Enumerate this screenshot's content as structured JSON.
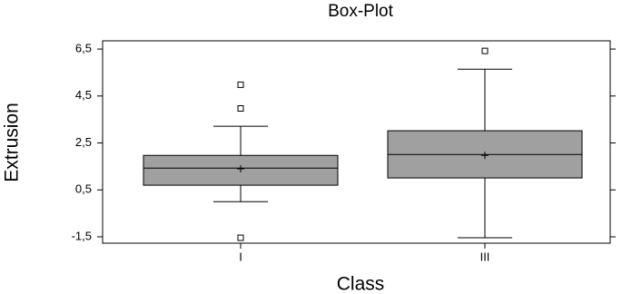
{
  "chart_data": {
    "type": "box",
    "title": "Box-Plot",
    "x_label": "Class",
    "y_label": "Extrusion",
    "categories": [
      "I",
      "III"
    ],
    "color": "#a0a0a0",
    "boxes": [
      {
        "min": 0.0,
        "q1": 0.7,
        "median": 1.43,
        "q3": 1.97,
        "max": 3.21,
        "mean": 1.4,
        "outliers": [
          4.98,
          3.97,
          -1.54
        ]
      },
      {
        "min": -1.54,
        "q1": 1.01,
        "median": 2.01,
        "q3": 3.02,
        "max": 5.64,
        "mean": 1.97,
        "outliers": [
          6.42
        ]
      }
    ],
    "ylim": [
      -1.77,
      6.85
    ],
    "yticks": [
      {
        "value": -1.5,
        "label": "-1,5"
      },
      {
        "value": 0.5,
        "label": "0,5"
      },
      {
        "value": 2.5,
        "label": "2,5"
      },
      {
        "value": 4.5,
        "label": "4,5"
      },
      {
        "value": 6.5,
        "label": "6,5"
      }
    ]
  }
}
